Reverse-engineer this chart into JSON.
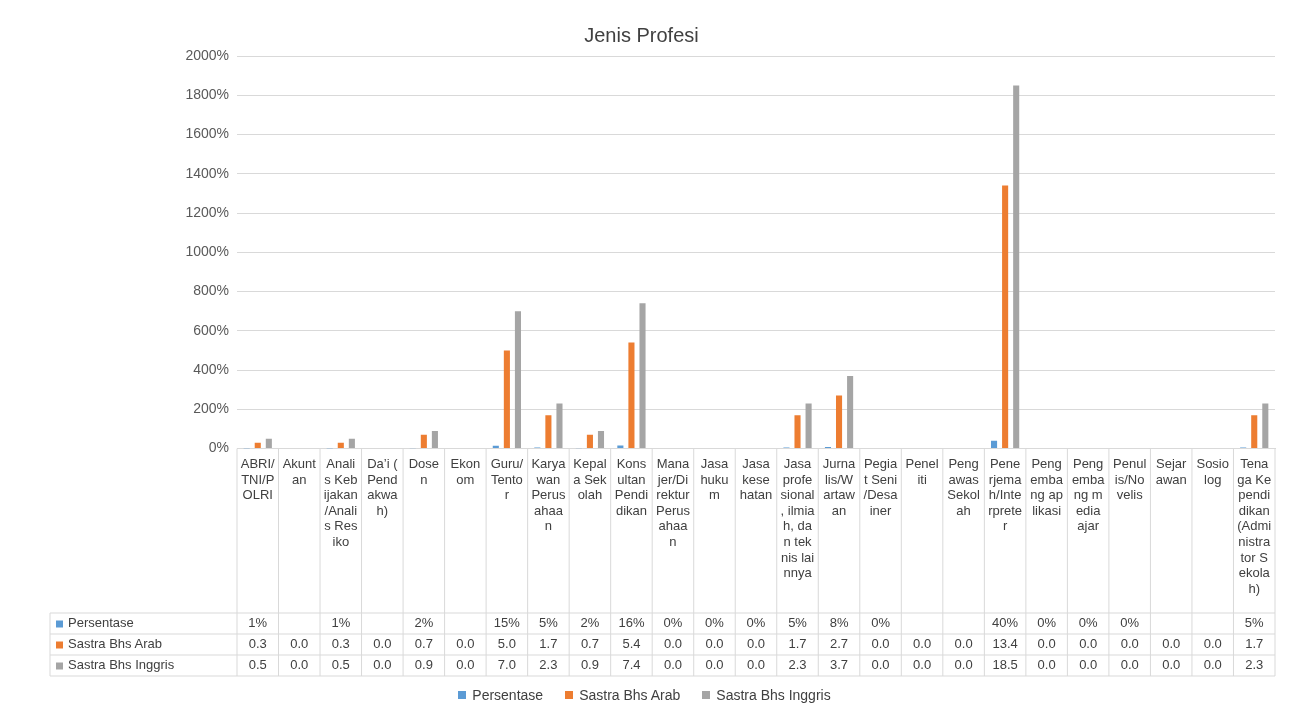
{
  "chart_data": {
    "type": "bar",
    "title": "Jenis Profesi",
    "categories": [
      "ABRI/TNI/POLRI",
      "Akuntan",
      "Analis Kebijakan/Analis Resiko",
      "Da’i (Pendakwah)",
      "Dosen",
      "Ekonom",
      "Guru/Tentor",
      "Karyawan Perusahaan",
      "Kepala Sekolah",
      "Konsultan Pendidikan",
      "Manajer/Direktur Perusahaan",
      "Jasa hukum",
      "Jasa kesehatan",
      "Jasa profesional, ilmiah, dan teknis lainnya",
      "Jurnalis/Wartawan",
      "Pegiat Seni/Desainer",
      "Peneliti",
      "Pengawas Sekolah",
      "Penerjemah/Interpreter",
      "Pengembang aplikasi",
      "Pengembang media ajar",
      "Penulis/Novelis",
      "Sejarawan",
      "Sosiolog",
      "Tenaga Kependidikan (Administrator Sekolah)"
    ],
    "series": [
      {
        "name": "Persentase",
        "color": "#5b9bd5",
        "values": [
          0.01,
          null,
          0.01,
          null,
          0.02,
          null,
          0.15,
          0.05,
          0.02,
          0.16,
          0,
          0,
          0,
          0.05,
          0.08,
          0,
          null,
          null,
          0.4,
          0,
          0,
          0,
          null,
          null,
          0.05
        ],
        "value_labels": [
          "1%",
          null,
          "1%",
          null,
          "2%",
          null,
          "15%",
          "5%",
          "2%",
          "16%",
          "0%",
          "0%",
          "0%",
          "5%",
          "8%",
          "0%",
          null,
          null,
          "40%",
          "0%",
          "0%",
          "0%",
          null,
          null,
          "5%"
        ]
      },
      {
        "name": "Sastra Bhs Arab",
        "color": "#ed7d31",
        "values": [
          0.3,
          0,
          0.3,
          0,
          0.7,
          0,
          5.0,
          1.7,
          0.7,
          5.4,
          0,
          0,
          0,
          1.7,
          2.7,
          0,
          0,
          0,
          13.4,
          0,
          0,
          0,
          0,
          0,
          1.7
        ],
        "value_labels": [
          "0.3",
          "0.0",
          "0.3",
          "0.0",
          "0.7",
          "0.0",
          "5.0",
          "1.7",
          "0.7",
          "5.4",
          "0.0",
          "0.0",
          "0.0",
          "1.7",
          "2.7",
          "0.0",
          "0.0",
          "0.0",
          "13.4",
          "0.0",
          "0.0",
          "0.0",
          "0.0",
          "0.0",
          "1.7"
        ]
      },
      {
        "name": "Sastra Bhs Inggris",
        "color": "#a5a5a5",
        "values": [
          0.5,
          0,
          0.5,
          0,
          0.9,
          0,
          7.0,
          2.3,
          0.9,
          7.4,
          0,
          0,
          0,
          2.3,
          3.7,
          0,
          0,
          0,
          18.5,
          0,
          0,
          0,
          0,
          0,
          2.3
        ],
        "value_labels": [
          "0.5",
          "0.0",
          "0.5",
          "0.0",
          "0.9",
          "0.0",
          "7.0",
          "2.3",
          "0.9",
          "7.4",
          "0.0",
          "0.0",
          "0.0",
          "2.3",
          "3.7",
          "0.0",
          "0.0",
          "0.0",
          "18.5",
          "0.0",
          "0.0",
          "0.0",
          "0.0",
          "0.0",
          "2.3"
        ]
      }
    ],
    "ylim": [
      0,
      20
    ],
    "yticks": [
      {
        "value": 0,
        "label": "0%"
      },
      {
        "value": 2,
        "label": "200%"
      },
      {
        "value": 4,
        "label": "400%"
      },
      {
        "value": 6,
        "label": "600%"
      },
      {
        "value": 8,
        "label": "800%"
      },
      {
        "value": 10,
        "label": "1000%"
      },
      {
        "value": 12,
        "label": "1200%"
      },
      {
        "value": 14,
        "label": "1400%"
      },
      {
        "value": 16,
        "label": "1600%"
      },
      {
        "value": 18,
        "label": "1800%"
      },
      {
        "value": 20,
        "label": "2000%"
      }
    ],
    "grid": "y",
    "legend": "bottom"
  }
}
